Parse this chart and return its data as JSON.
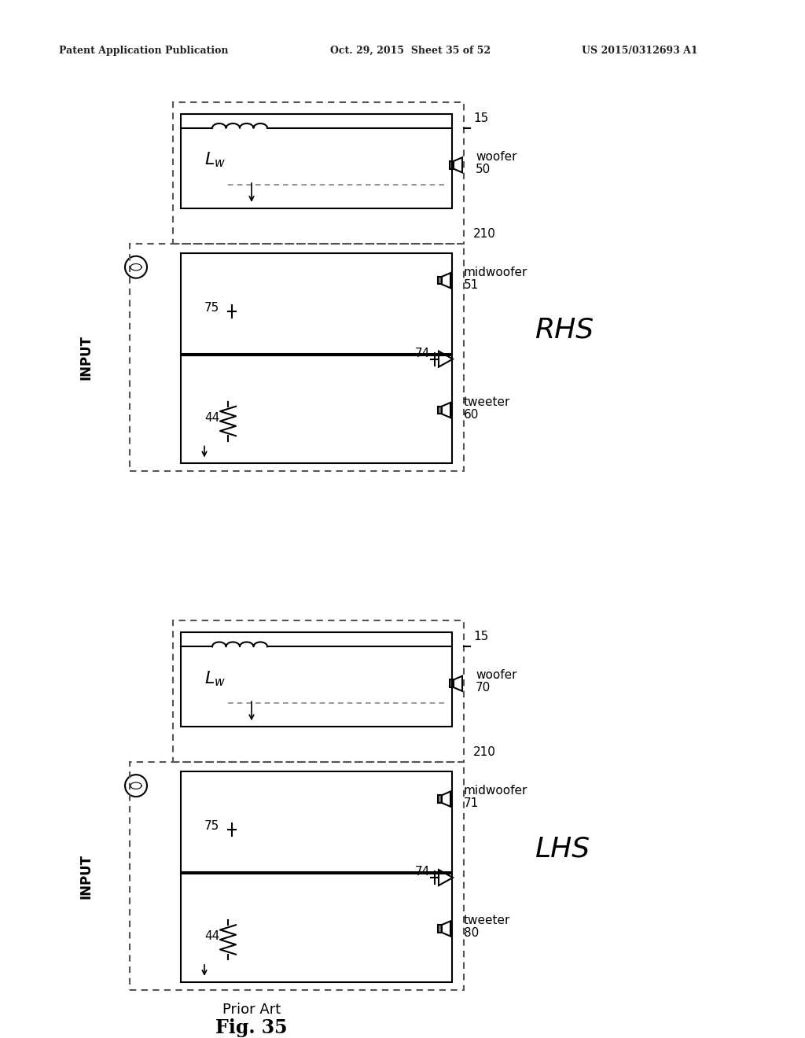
{
  "title_left": "Patent Application Publication",
  "title_center": "Oct. 29, 2015  Sheet 35 of 52",
  "title_right": "US 2015/0312693 A1",
  "fig_label": "Fig. 35",
  "fig_sublabel": "Prior Art",
  "bg_color": "#ffffff",
  "line_color": "#000000",
  "dashed_color": "#555555",
  "rhs_label": "RHS",
  "lhs_label": "LHS",
  "input_label": "INPUT",
  "top_diagram": {
    "label_15": "15",
    "label_210": "210",
    "label_Lw": "L_w",
    "label_75": "75",
    "label_44": "44",
    "label_74": "74",
    "woofer_label": "woofer",
    "woofer_num": "50",
    "midwoofer_label": "midwoofer",
    "midwoofer_num": "51",
    "tweeter_label": "tweeter",
    "tweeter_num": "60"
  },
  "bot_diagram": {
    "label_15": "15",
    "label_210": "210",
    "label_Lw": "L_w",
    "label_75": "75",
    "label_44": "44",
    "label_74": "74",
    "woofer_label": "woofer",
    "woofer_num": "70",
    "midwoofer_label": "midwoofer",
    "midwoofer_num": "71",
    "tweeter_label": "tweeter",
    "tweeter_num": "80"
  }
}
